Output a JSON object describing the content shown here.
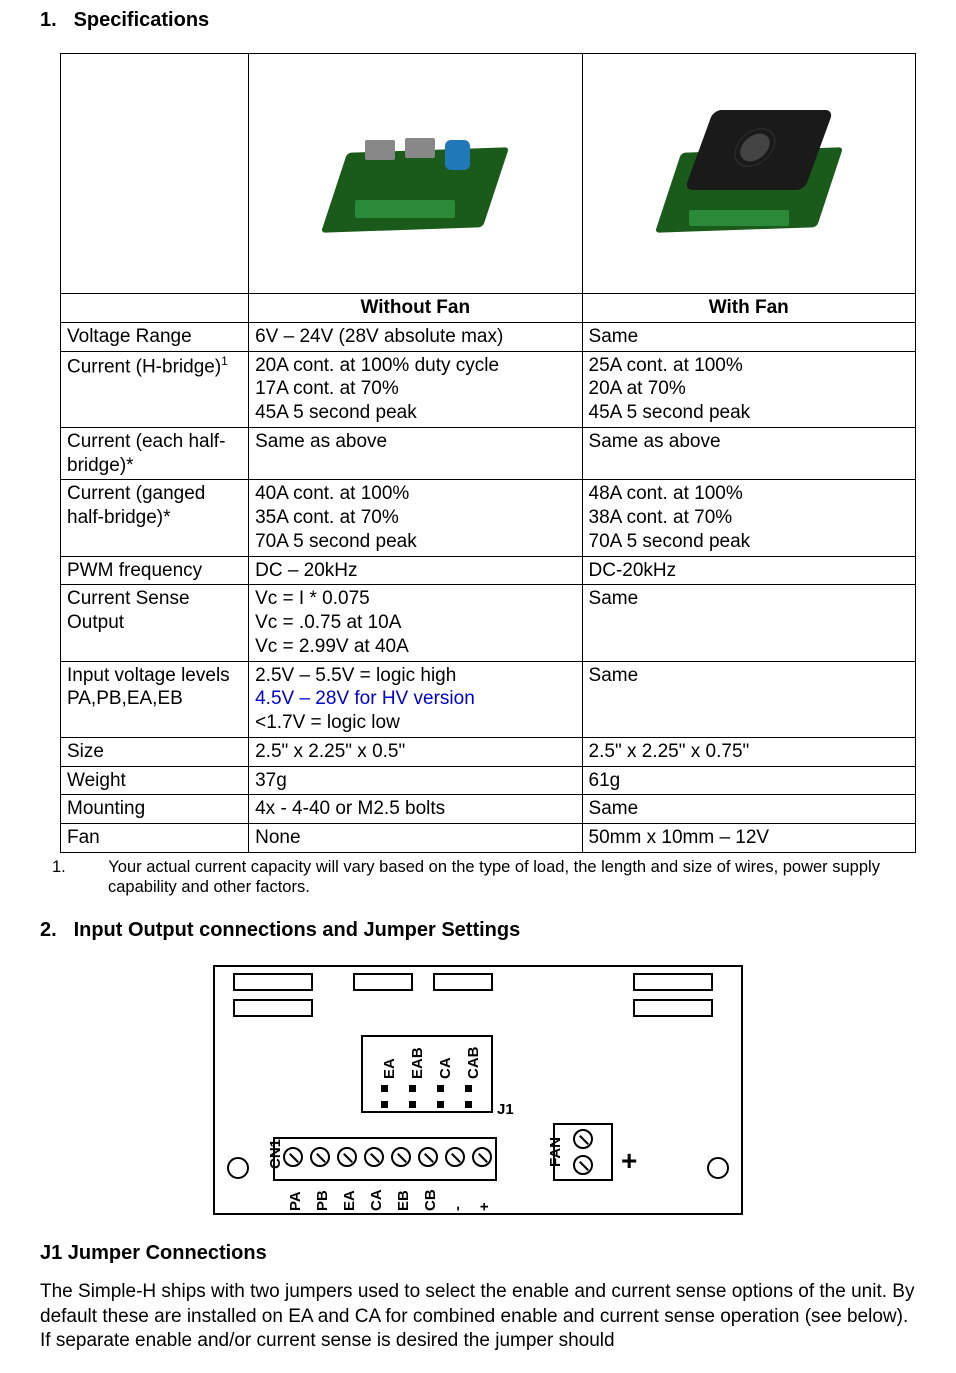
{
  "sections": {
    "spec_heading_num": "1.",
    "spec_heading": "Specifications",
    "io_heading_num": "2.",
    "io_heading": "Input Output connections and Jumper Settings",
    "j1_heading": "J1 Jumper Connections"
  },
  "spec_table": {
    "col_headers": [
      "",
      "Without Fan",
      "With Fan"
    ],
    "rows": [
      {
        "label": "Voltage Range",
        "without": "6V – 24V (28V absolute max)",
        "with": "Same"
      },
      {
        "label": "Current (H-bridge)",
        "label_sup": "1",
        "without": "20A cont. at 100% duty cycle\n17A cont. at 70%\n45A 5 second peak",
        "with": "25A cont. at 100%\n20A at 70%\n45A 5 second peak"
      },
      {
        "label": "Current (each half-bridge)*",
        "without": "Same as above",
        "with": "Same as above"
      },
      {
        "label": "Current (ganged half-bridge)*",
        "without": "40A cont. at 100%\n35A cont. at 70%\n70A 5 second peak",
        "with": "48A cont. at 100%\n38A cont. at 70%\n70A 5 second peak"
      },
      {
        "label": "PWM frequency",
        "without": "DC – 20kHz",
        "with": "DC-20kHz"
      },
      {
        "label": "Current Sense Output",
        "without": "Vc = I * 0.075\nVc = .0.75 at 10A\nVc = 2.99V at 40A",
        "with": "Same"
      },
      {
        "label": "Input voltage levels\nPA,PB,EA,EB",
        "without_lines": [
          {
            "text": "2.5V – 5.5V = logic high",
            "blue": false
          },
          {
            "text": "4.5V – 28V for HV version",
            "blue": true
          },
          {
            "text": "<1.7V = logic low",
            "blue": false
          }
        ],
        "with": "Same"
      },
      {
        "label": "Size",
        "without": "2.5\" x 2.25\" x 0.5\"",
        "with": "2.5\" x 2.25\" x 0.75\""
      },
      {
        "label": "Weight",
        "without": "37g",
        "with": "61g"
      },
      {
        "label": "Mounting",
        "without": "4x - 4-40 or M2.5 bolts",
        "with": "Same"
      },
      {
        "label": "Fan",
        "without": "None",
        "with": "50mm x 10mm – 12V"
      }
    ]
  },
  "footnote": {
    "num": "1.",
    "text": "Your actual current capacity will vary based on the type of load, the length and size of wires, power supply capability and other factors."
  },
  "diagram": {
    "cn1_label": "CN1",
    "j1_label": "J1",
    "fan_label": "FAN",
    "plus": "+",
    "minus": "-",
    "terminal_labels": [
      "PA",
      "PB",
      "EA",
      "CA",
      "EB",
      "CB",
      "-",
      "+"
    ],
    "jumper_labels": [
      "EA",
      "EAB",
      "CA",
      "CAB"
    ]
  },
  "body": {
    "j1_para": "The Simple-H ships with two jumpers used to select the enable and current sense options of the unit.  By default these are installed on EA and CA for combined enable and current sense operation (see below).  If separate enable and/or current sense is desired the jumper should"
  },
  "colors": {
    "text": "#000000",
    "link_blue": "#0000d0",
    "pcb_green": "#1a5a1a",
    "fan_black": "#1a1a1a"
  }
}
